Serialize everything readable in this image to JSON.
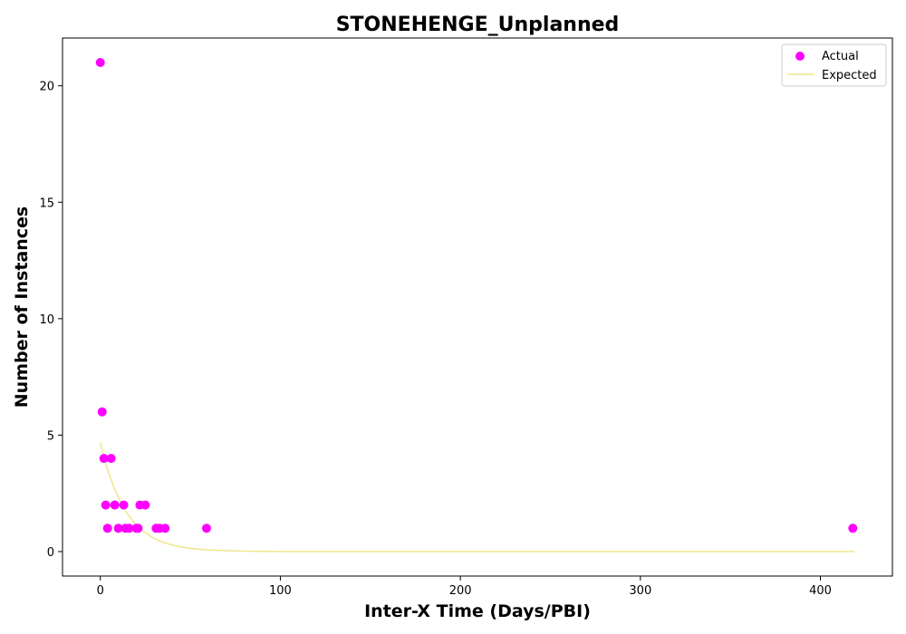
{
  "chart_data": {
    "type": "scatter",
    "title": "STONEHENGE_Unplanned",
    "xlabel": "Inter-X Time (Days/PBI)",
    "ylabel": "Number of Instances",
    "xlim": [
      -21,
      440
    ],
    "ylim": [
      -1.05,
      22.05
    ],
    "xticks": [
      0,
      100,
      200,
      300,
      400
    ],
    "yticks": [
      0,
      5,
      10,
      15,
      20
    ],
    "grid": false,
    "legend_position": "top-right",
    "series": [
      {
        "name": "Actual",
        "kind": "scatter",
        "color": "#ff00ff",
        "points": [
          {
            "x": 0,
            "y": 21
          },
          {
            "x": 1,
            "y": 6
          },
          {
            "x": 2,
            "y": 4
          },
          {
            "x": 6,
            "y": 4
          },
          {
            "x": 3,
            "y": 2
          },
          {
            "x": 8,
            "y": 2
          },
          {
            "x": 13,
            "y": 2
          },
          {
            "x": 22,
            "y": 2
          },
          {
            "x": 25,
            "y": 2
          },
          {
            "x": 4,
            "y": 1
          },
          {
            "x": 10,
            "y": 1
          },
          {
            "x": 14,
            "y": 1
          },
          {
            "x": 16,
            "y": 1
          },
          {
            "x": 20,
            "y": 1
          },
          {
            "x": 21,
            "y": 1
          },
          {
            "x": 31,
            "y": 1
          },
          {
            "x": 33,
            "y": 1
          },
          {
            "x": 36,
            "y": 1
          },
          {
            "x": 59,
            "y": 1
          },
          {
            "x": 418,
            "y": 1
          }
        ]
      },
      {
        "name": "Expected",
        "kind": "line",
        "color": "#f0e68c",
        "points": [
          {
            "x": 0,
            "y": 4.68
          },
          {
            "x": 2,
            "y": 4.07
          },
          {
            "x": 4,
            "y": 3.53
          },
          {
            "x": 6,
            "y": 3.07
          },
          {
            "x": 8,
            "y": 2.67
          },
          {
            "x": 10,
            "y": 2.32
          },
          {
            "x": 12,
            "y": 2.02
          },
          {
            "x": 14,
            "y": 1.75
          },
          {
            "x": 16,
            "y": 1.52
          },
          {
            "x": 18,
            "y": 1.32
          },
          {
            "x": 20,
            "y": 1.15
          },
          {
            "x": 24,
            "y": 0.87
          },
          {
            "x": 28,
            "y": 0.65
          },
          {
            "x": 32,
            "y": 0.49
          },
          {
            "x": 36,
            "y": 0.37
          },
          {
            "x": 40,
            "y": 0.28
          },
          {
            "x": 45,
            "y": 0.2
          },
          {
            "x": 50,
            "y": 0.14
          },
          {
            "x": 55,
            "y": 0.1
          },
          {
            "x": 60,
            "y": 0.07
          },
          {
            "x": 70,
            "y": 0.04
          },
          {
            "x": 80,
            "y": 0.02
          },
          {
            "x": 90,
            "y": 0.01
          },
          {
            "x": 100,
            "y": 0.0
          },
          {
            "x": 150,
            "y": 0.0
          },
          {
            "x": 200,
            "y": 0.0
          },
          {
            "x": 300,
            "y": 0.0
          },
          {
            "x": 419,
            "y": 0.0
          }
        ]
      }
    ]
  }
}
